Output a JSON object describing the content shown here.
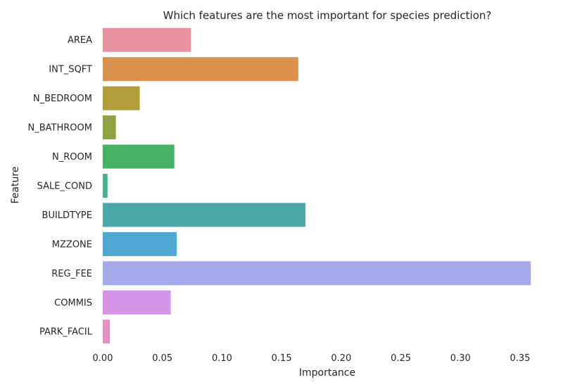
{
  "chart_data": {
    "type": "bar",
    "orientation": "horizontal",
    "title": "Which features are the most important for species prediction?",
    "xlabel": "Importance",
    "ylabel": "Feature",
    "xlim": [
      0,
      0.36
    ],
    "xticks": [
      0.0,
      0.05,
      0.1,
      0.15,
      0.2,
      0.25,
      0.3,
      0.35
    ],
    "xtick_labels": [
      "0.00",
      "0.05",
      "0.10",
      "0.15",
      "0.20",
      "0.25",
      "0.30",
      "0.35"
    ],
    "grid": false,
    "categories": [
      "AREA",
      "INT_SQFT",
      "N_BEDROOM",
      "N_BATHROOM",
      "N_ROOM",
      "SALE_COND",
      "BUILDTYPE",
      "MZZONE",
      "REG_FEE",
      "COMMIS",
      "PARK_FACIL"
    ],
    "values": [
      0.074,
      0.164,
      0.031,
      0.011,
      0.06,
      0.004,
      0.17,
      0.062,
      0.359,
      0.057,
      0.006
    ],
    "colors": [
      "#e8919f",
      "#da914c",
      "#b39d3b",
      "#8fa243",
      "#46b364",
      "#4bb08c",
      "#4aa8a8",
      "#4ea8d2",
      "#a4a9ea",
      "#d592e7",
      "#e48fc8"
    ]
  }
}
